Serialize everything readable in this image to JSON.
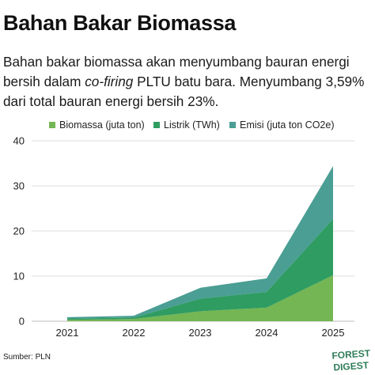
{
  "header": {
    "title": "Bahan Bakar Biomassa",
    "subtitle_pre": "Bahan bakar biomassa akan menyumbang bauran energi bersih dalam ",
    "subtitle_em": "co-firing",
    "subtitle_post": " PLTU batu bara. Menyumbang 3,59% dari total bauran energi bersih 23%."
  },
  "chart_data": {
    "type": "area",
    "stacked": true,
    "x": [
      "2021",
      "2022",
      "2023",
      "2024",
      "2025"
    ],
    "series": [
      {
        "name": "Biomassa (juta ton)",
        "color": "#74b653",
        "values": [
          0.3,
          0.5,
          2.2,
          3.0,
          10.2
        ]
      },
      {
        "name": "Listrik (TWh)",
        "color": "#2f9c62",
        "values": [
          0.3,
          0.3,
          2.8,
          3.5,
          12.5
        ]
      },
      {
        "name": "Emisi (juta ton CO2e)",
        "color": "#4a9e93",
        "values": [
          0.3,
          0.4,
          2.4,
          3.0,
          11.7
        ]
      }
    ],
    "ylim": [
      0,
      40
    ],
    "yticks": [
      0,
      10,
      20,
      30,
      40
    ],
    "grid": true,
    "legend": "top-right"
  },
  "footer": {
    "source": "Sumber: PLN",
    "logo_line1": "FOREST",
    "logo_line2": "DIGEST"
  }
}
